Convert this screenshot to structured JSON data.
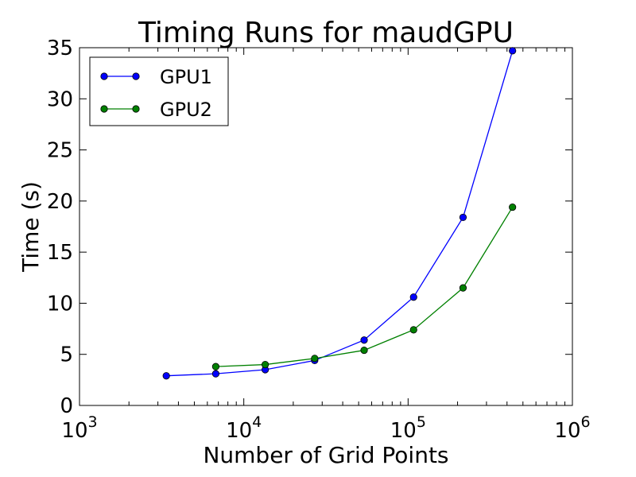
{
  "chart_data": {
    "type": "line",
    "title": "Timing Runs for maudGPU",
    "xlabel": "Number of Grid Points",
    "ylabel": "Time (s)",
    "xscale": "log",
    "xlim": [
      1000,
      1000000
    ],
    "ylim": [
      0,
      35
    ],
    "xticks": [
      {
        "value": 1000,
        "base": "10",
        "exp": "3"
      },
      {
        "value": 10000,
        "base": "10",
        "exp": "4"
      },
      {
        "value": 100000,
        "base": "10",
        "exp": "5"
      },
      {
        "value": 1000000,
        "base": "10",
        "exp": "6"
      }
    ],
    "yticks": [
      0,
      5,
      10,
      15,
      20,
      25,
      30,
      35
    ],
    "grid": false,
    "legend_position": "top-left",
    "series": [
      {
        "name": "GPU1",
        "color": "#0000ff",
        "marker": "circle",
        "x": [
          3375,
          6750,
          13500,
          27000,
          54000,
          108000,
          216000,
          432000
        ],
        "y": [
          2.9,
          3.1,
          3.5,
          4.4,
          6.4,
          10.6,
          18.4,
          34.7
        ]
      },
      {
        "name": "GPU2",
        "color": "#008000",
        "marker": "circle",
        "x": [
          6750,
          13500,
          27000,
          54000,
          108000,
          216000,
          432000
        ],
        "y": [
          3.8,
          4.0,
          4.6,
          5.4,
          7.4,
          11.5,
          19.4
        ]
      }
    ]
  }
}
